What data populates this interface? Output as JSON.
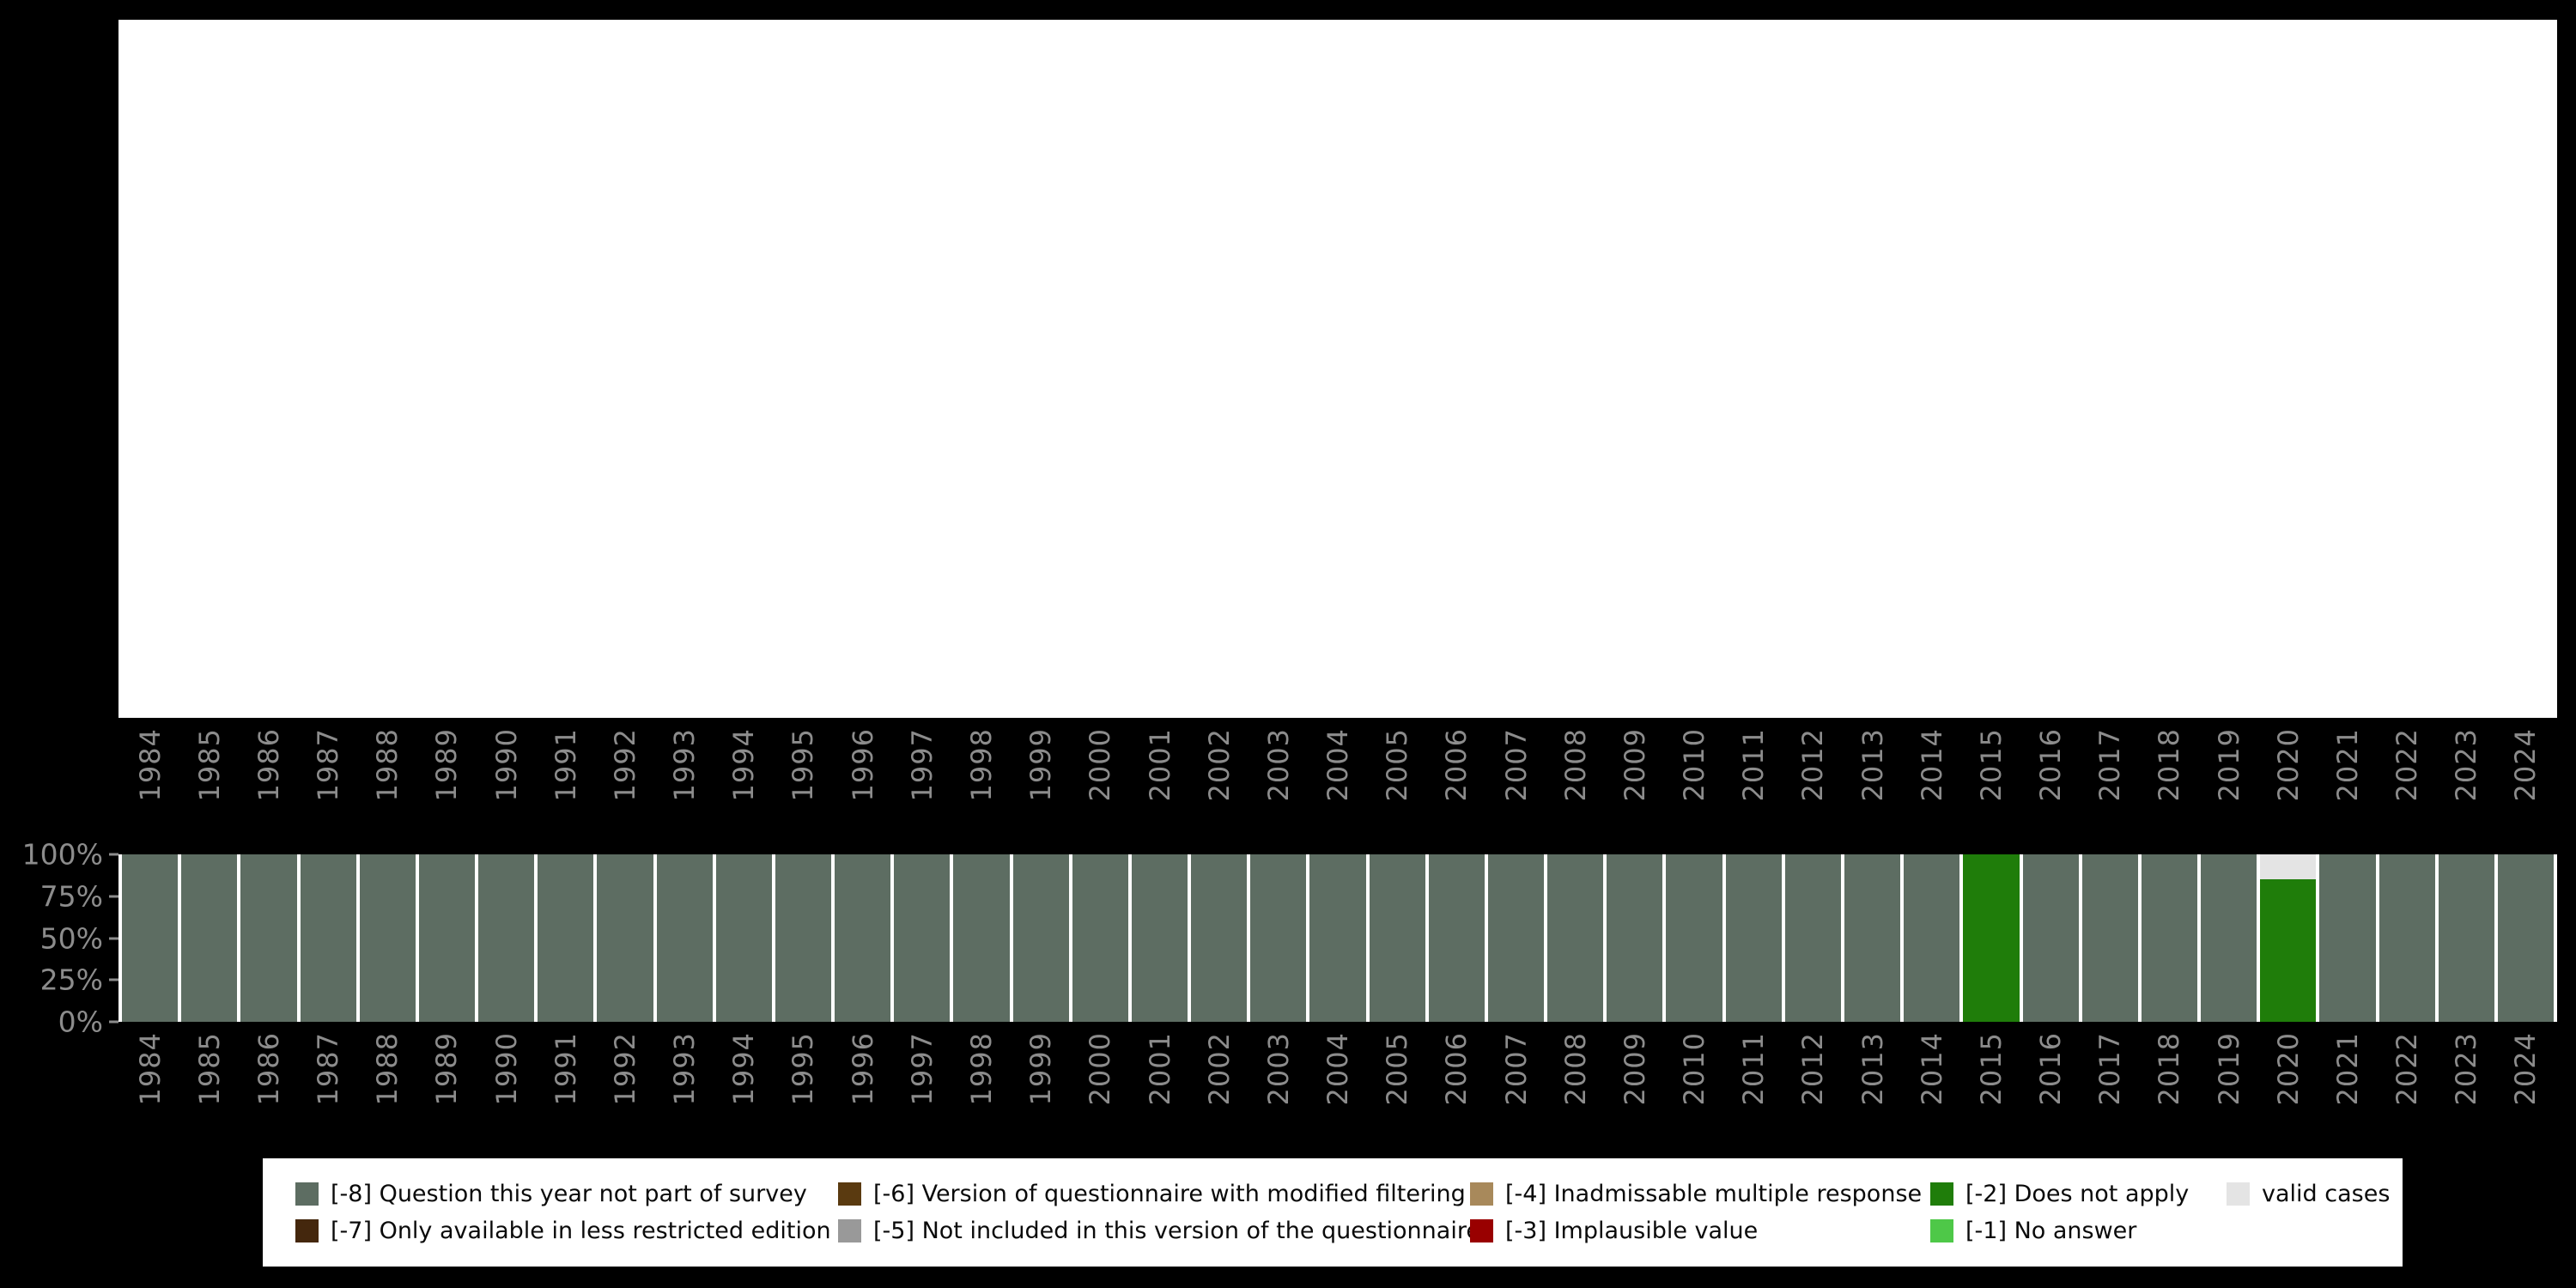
{
  "chart_data": {
    "type": "bar",
    "stacked": true,
    "title": "",
    "xlabel": "",
    "ylabel": "",
    "ylim": [
      0,
      100
    ],
    "grid": false,
    "x_tick_rotation": 90,
    "legend_position": "bottom",
    "x": [
      "1984",
      "1985",
      "1986",
      "1987",
      "1988",
      "1989",
      "1990",
      "1991",
      "1992",
      "1993",
      "1994",
      "1995",
      "1996",
      "1997",
      "1998",
      "1999",
      "2000",
      "2001",
      "2002",
      "2003",
      "2004",
      "2005",
      "2006",
      "2007",
      "2008",
      "2009",
      "2010",
      "2011",
      "2012",
      "2013",
      "2014",
      "2015",
      "2016",
      "2017",
      "2018",
      "2019",
      "2020",
      "2021",
      "2022",
      "2023",
      "2024"
    ],
    "y_ticks": [
      {
        "label": "100%",
        "value": 100
      },
      {
        "label": "75%",
        "value": 75
      },
      {
        "label": "50%",
        "value": 50
      },
      {
        "label": "25%",
        "value": 25
      },
      {
        "label": "0%",
        "value": 0
      }
    ],
    "series": [
      {
        "name": "[-8] Question this year not part of survey",
        "color": "#5d6d62",
        "values": [
          100,
          100,
          100,
          100,
          100,
          100,
          100,
          100,
          100,
          100,
          100,
          100,
          100,
          100,
          100,
          100,
          100,
          100,
          100,
          100,
          100,
          100,
          100,
          100,
          100,
          100,
          100,
          100,
          100,
          100,
          100,
          0,
          100,
          100,
          100,
          100,
          0,
          100,
          100,
          100,
          100
        ]
      },
      {
        "name": "[-2] Does not apply",
        "color": "#1f7d0a",
        "values": [
          0,
          0,
          0,
          0,
          0,
          0,
          0,
          0,
          0,
          0,
          0,
          0,
          0,
          0,
          0,
          0,
          0,
          0,
          0,
          0,
          0,
          0,
          0,
          0,
          0,
          0,
          0,
          0,
          0,
          0,
          0,
          100,
          0,
          0,
          0,
          0,
          85,
          0,
          0,
          0,
          0
        ]
      },
      {
        "name": "valid cases",
        "color": "#e4e4e4",
        "values": [
          0,
          0,
          0,
          0,
          0,
          0,
          0,
          0,
          0,
          0,
          0,
          0,
          0,
          0,
          0,
          0,
          0,
          0,
          0,
          0,
          0,
          0,
          0,
          0,
          0,
          0,
          0,
          0,
          0,
          0,
          0,
          0,
          0,
          0,
          0,
          0,
          15,
          0,
          0,
          0,
          0
        ]
      }
    ]
  },
  "legend": {
    "rows": [
      [
        {
          "label": "[-8] Question this year not part of survey",
          "color": "#5d6d62"
        },
        {
          "label": "[-6] Version of questionnaire with modified filtering",
          "color": "#5a3a10"
        },
        {
          "label": "[-4] Inadmissable multiple response",
          "color": "#a8895b"
        },
        {
          "label": "[-2] Does not apply",
          "color": "#1f7d0a"
        },
        {
          "label": "valid cases",
          "color": "#e4e4e4"
        }
      ],
      [
        {
          "label": "[-7] Only available in less restricted edition",
          "color": "#44270d"
        },
        {
          "label": "[-5] Not included in this version of the questionnaire",
          "color": "#999999"
        },
        {
          "label": "[-3] Implausible value",
          "color": "#990000"
        },
        {
          "label": "[-1] No answer",
          "color": "#4ec848"
        }
      ]
    ]
  },
  "colors": {
    "background": "#000000",
    "plot_background": "#ffffff",
    "axis_label_gray": "#8c8c8c"
  }
}
